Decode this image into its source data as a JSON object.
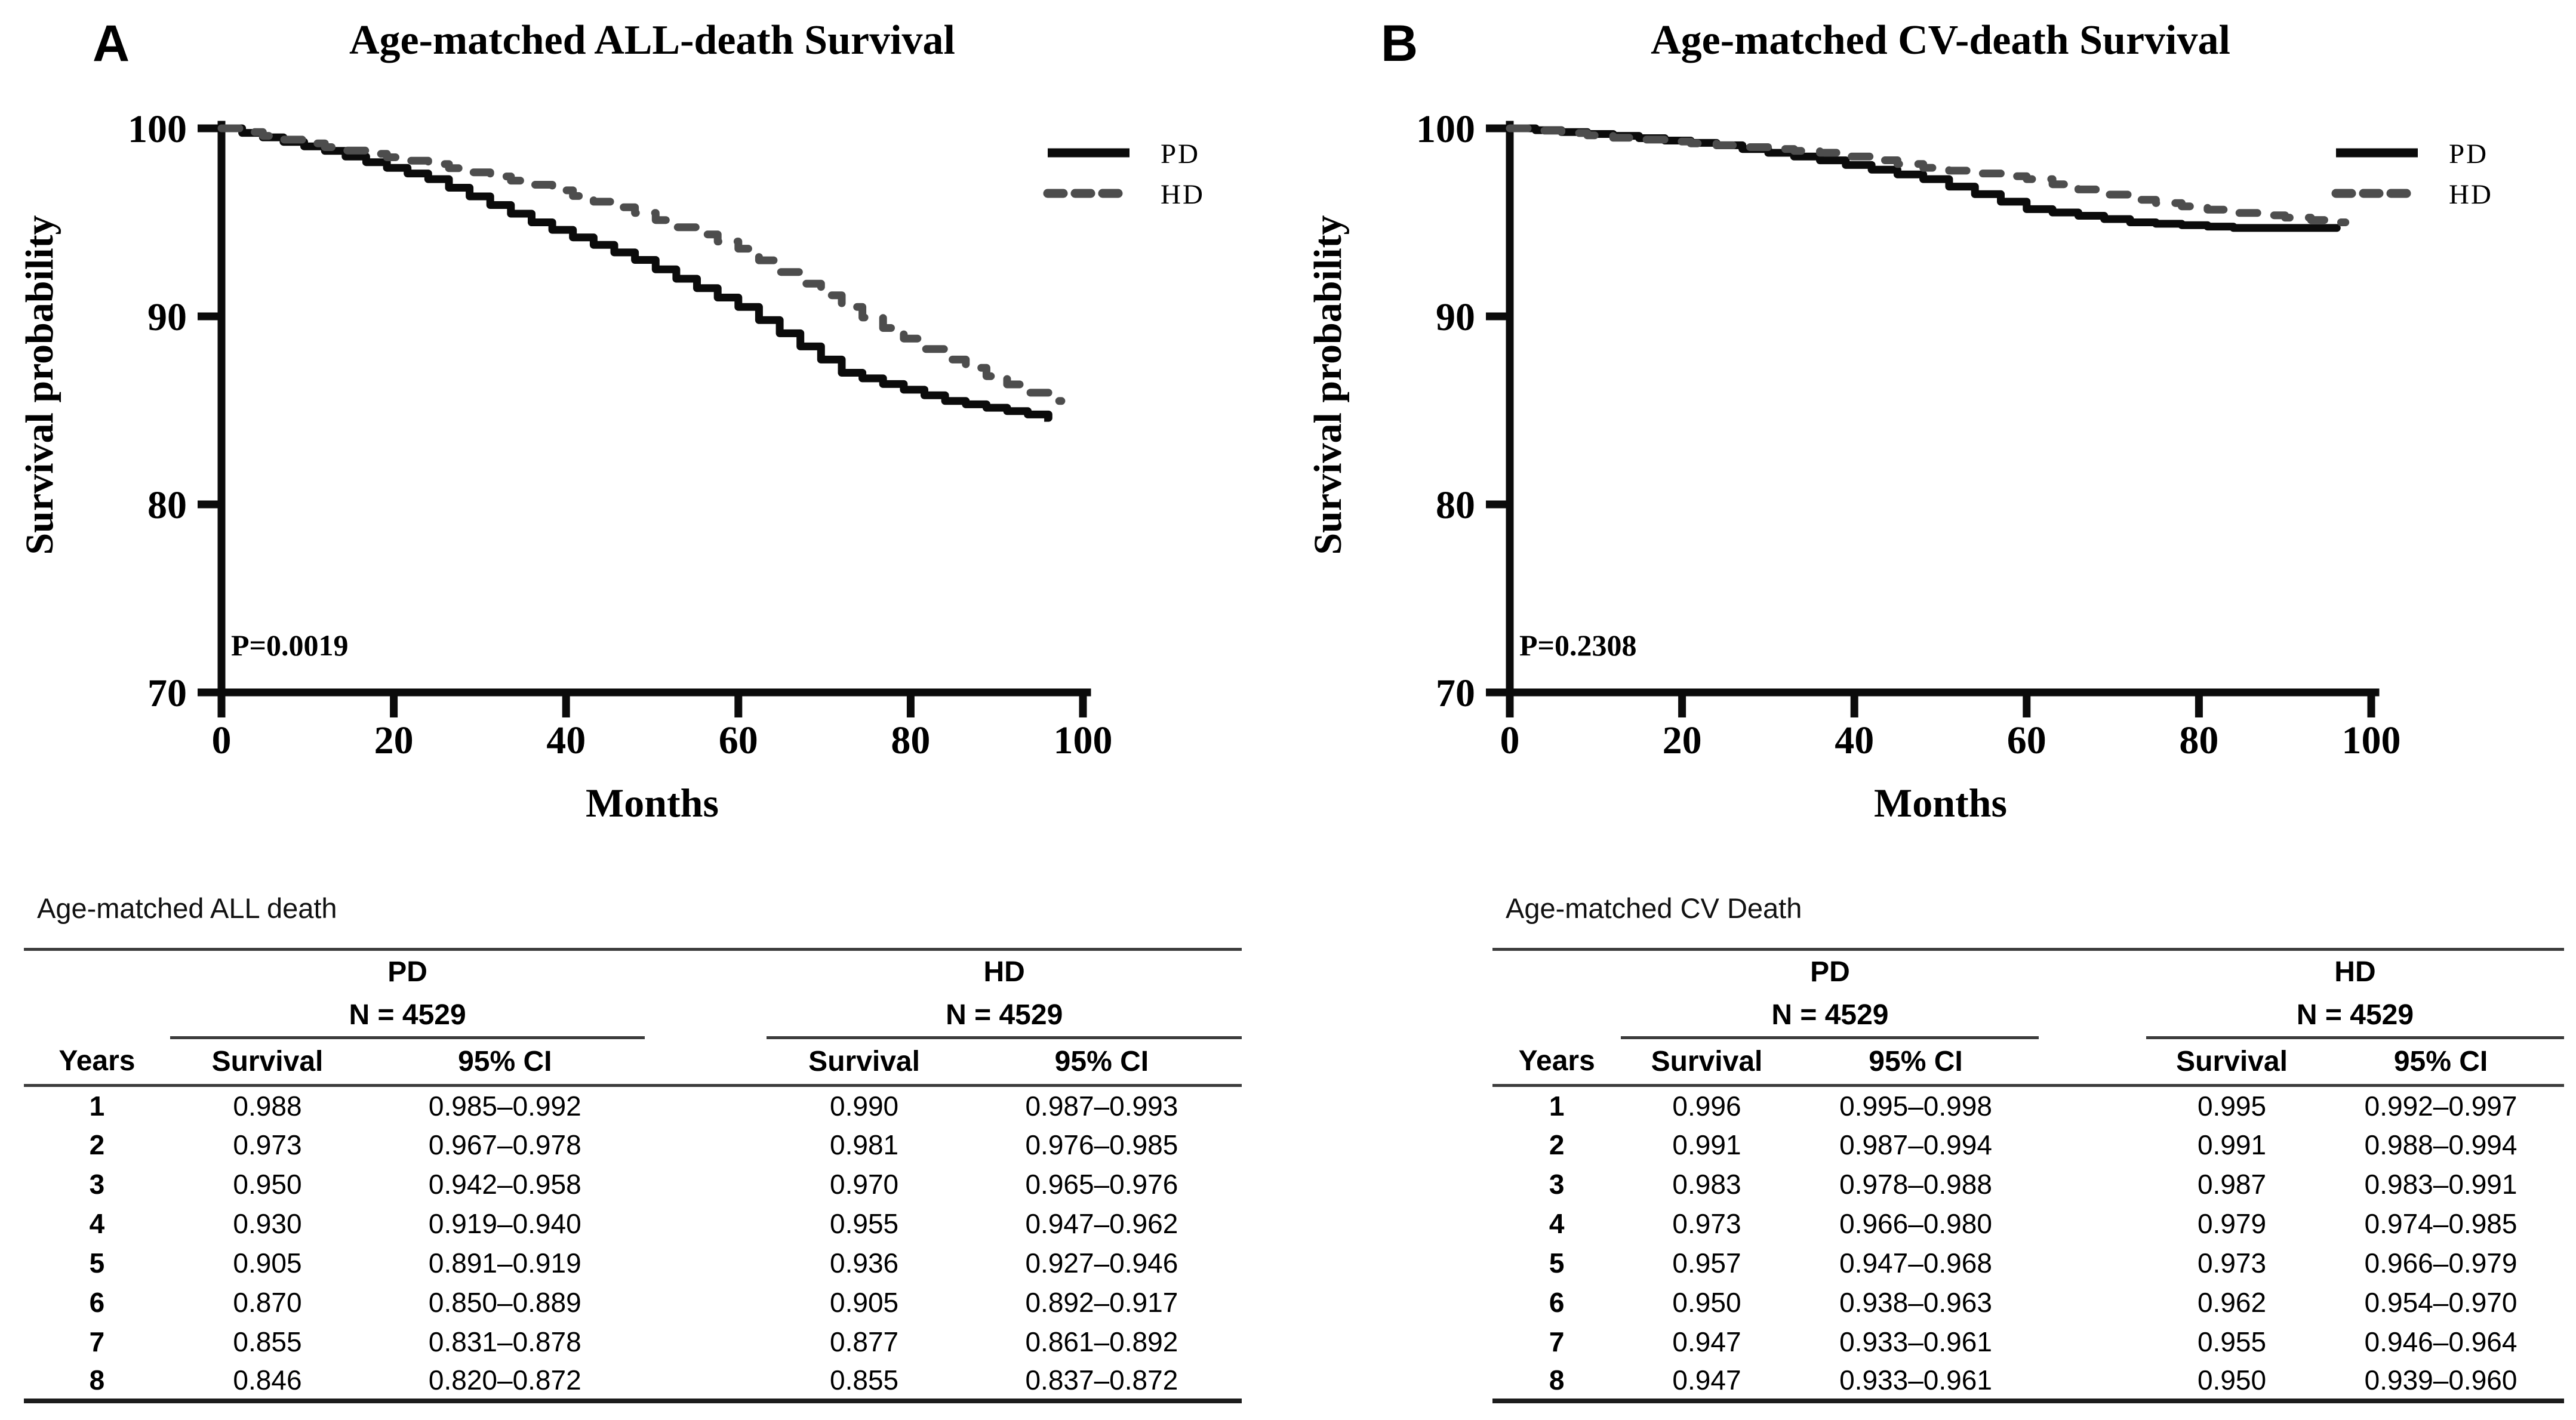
{
  "figure_background": "#ffffff",
  "accent_black": "#0b0b0b",
  "dash_gray": "#4d4d4d",
  "rule_gray": "#3c3c3c",
  "chart_data": [
    {
      "type": "line",
      "panel_label": "A",
      "title": "Age-matched ALL-death Survival",
      "xlabel": "Months",
      "ylabel": "Survival probability",
      "xlim": [
        0,
        104
      ],
      "ylim": [
        70,
        100
      ],
      "x_ticks": [
        0,
        20,
        40,
        60,
        80,
        100
      ],
      "y_ticks": [
        70,
        80,
        90,
        100
      ],
      "grid": false,
      "annotation": "P=0.0019",
      "legend_position": "upper right outside plot",
      "legend": [
        "PD",
        "HD"
      ],
      "series": [
        {
          "name": "PD",
          "line_style": "solid",
          "color": "#0b0b0b",
          "x": [
            0,
            12,
            24,
            36,
            48,
            60,
            72,
            84,
            96
          ],
          "y": [
            100,
            98.8,
            97.3,
            95.0,
            93.0,
            90.5,
            87.0,
            85.5,
            84.6
          ],
          "steps_per_interval": 5,
          "tail_end_month": 95.5
        },
        {
          "name": "HD",
          "line_style": "dashed",
          "color": "#4d4d4d",
          "x": [
            0,
            12,
            24,
            36,
            48,
            60,
            72,
            84,
            96
          ],
          "y": [
            100,
            99.0,
            98.1,
            97.0,
            95.5,
            93.6,
            90.5,
            87.7,
            85.5
          ],
          "steps_per_interval": 5,
          "tail_end_month": 97.5
        }
      ]
    },
    {
      "type": "line",
      "panel_label": "B",
      "title": "Age-matched CV-death Survival",
      "xlabel": "Months",
      "ylabel": "Survival probability",
      "xlim": [
        0,
        104
      ],
      "ylim": [
        70,
        100
      ],
      "x_ticks": [
        0,
        20,
        40,
        60,
        80,
        100
      ],
      "y_ticks": [
        70,
        80,
        90,
        100
      ],
      "grid": false,
      "annotation": "P=0.2308",
      "legend_position": "upper right outside plot",
      "legend": [
        "PD",
        "HD"
      ],
      "series": [
        {
          "name": "PD",
          "line_style": "solid",
          "color": "#0b0b0b",
          "x": [
            0,
            12,
            24,
            36,
            48,
            60,
            72,
            84,
            96
          ],
          "y": [
            100,
            99.6,
            99.1,
            98.3,
            97.3,
            95.7,
            95.0,
            94.7,
            94.7
          ],
          "steps_per_interval": 4,
          "tail_end_month": 95.5
        },
        {
          "name": "HD",
          "line_style": "dashed",
          "color": "#4d4d4d",
          "x": [
            0,
            12,
            24,
            36,
            48,
            60,
            72,
            84,
            96
          ],
          "y": [
            100,
            99.5,
            99.1,
            98.7,
            97.9,
            97.3,
            96.2,
            95.5,
            95.0
          ],
          "steps_per_interval": 4,
          "tail_end_month": 97.0
        }
      ]
    }
  ],
  "tables": [
    {
      "caption": "Age-matched ALL death",
      "col_header": "Years",
      "groups": [
        {
          "name": "PD",
          "n": "N = 4529"
        },
        {
          "name": "HD",
          "n": "N = 4529"
        }
      ],
      "sub_headers": [
        "Survival",
        "95% CI"
      ],
      "rows": [
        {
          "year": "1",
          "pd_survival": "0.988",
          "pd_ci": "0.985–0.992",
          "hd_survival": "0.990",
          "hd_ci": "0.987–0.993"
        },
        {
          "year": "2",
          "pd_survival": "0.973",
          "pd_ci": "0.967–0.978",
          "hd_survival": "0.981",
          "hd_ci": "0.976–0.985"
        },
        {
          "year": "3",
          "pd_survival": "0.950",
          "pd_ci": "0.942–0.958",
          "hd_survival": "0.970",
          "hd_ci": "0.965–0.976"
        },
        {
          "year": "4",
          "pd_survival": "0.930",
          "pd_ci": "0.919–0.940",
          "hd_survival": "0.955",
          "hd_ci": "0.947–0.962"
        },
        {
          "year": "5",
          "pd_survival": "0.905",
          "pd_ci": "0.891–0.919",
          "hd_survival": "0.936",
          "hd_ci": "0.927–0.946"
        },
        {
          "year": "6",
          "pd_survival": "0.870",
          "pd_ci": "0.850–0.889",
          "hd_survival": "0.905",
          "hd_ci": "0.892–0.917"
        },
        {
          "year": "7",
          "pd_survival": "0.855",
          "pd_ci": "0.831–0.878",
          "hd_survival": "0.877",
          "hd_ci": "0.861–0.892"
        },
        {
          "year": "8",
          "pd_survival": "0.846",
          "pd_ci": "0.820–0.872",
          "hd_survival": "0.855",
          "hd_ci": "0.837–0.872"
        }
      ]
    },
    {
      "caption": "Age-matched CV Death",
      "col_header": "Years",
      "groups": [
        {
          "name": "PD",
          "n": "N = 4529"
        },
        {
          "name": "HD",
          "n": "N = 4529"
        }
      ],
      "sub_headers": [
        "Survival",
        "95% CI"
      ],
      "rows": [
        {
          "year": "1",
          "pd_survival": "0.996",
          "pd_ci": "0.995–0.998",
          "hd_survival": "0.995",
          "hd_ci": "0.992–0.997"
        },
        {
          "year": "2",
          "pd_survival": "0.991",
          "pd_ci": "0.987–0.994",
          "hd_survival": "0.991",
          "hd_ci": "0.988–0.994"
        },
        {
          "year": "3",
          "pd_survival": "0.983",
          "pd_ci": "0.978–0.988",
          "hd_survival": "0.987",
          "hd_ci": "0.983–0.991"
        },
        {
          "year": "4",
          "pd_survival": "0.973",
          "pd_ci": "0.966–0.980",
          "hd_survival": "0.979",
          "hd_ci": "0.974–0.985"
        },
        {
          "year": "5",
          "pd_survival": "0.957",
          "pd_ci": "0.947–0.968",
          "hd_survival": "0.973",
          "hd_ci": "0.966–0.979"
        },
        {
          "year": "6",
          "pd_survival": "0.950",
          "pd_ci": "0.938–0.963",
          "hd_survival": "0.962",
          "hd_ci": "0.954–0.970"
        },
        {
          "year": "7",
          "pd_survival": "0.947",
          "pd_ci": "0.933–0.961",
          "hd_survival": "0.955",
          "hd_ci": "0.946–0.964"
        },
        {
          "year": "8",
          "pd_survival": "0.947",
          "pd_ci": "0.933–0.961",
          "hd_survival": "0.950",
          "hd_ci": "0.939–0.960"
        }
      ]
    }
  ]
}
